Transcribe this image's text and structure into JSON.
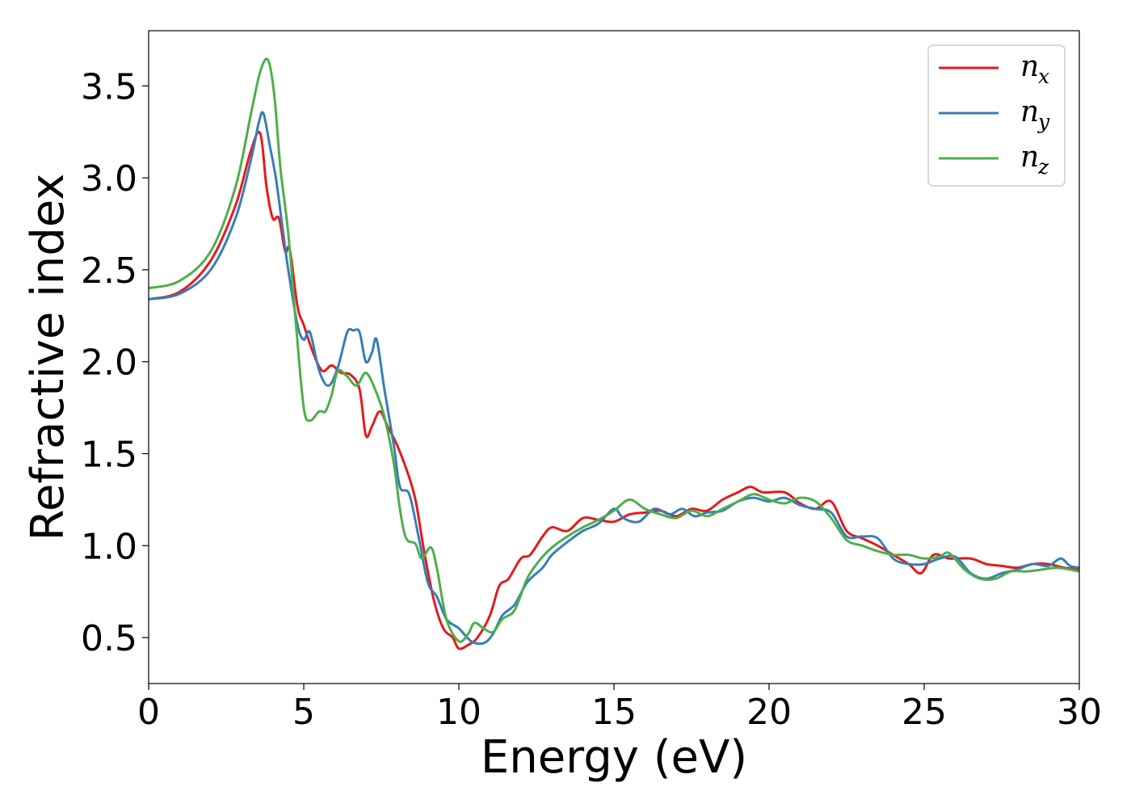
{
  "chart_data": {
    "type": "line",
    "xlabel": "Energy (eV)",
    "ylabel": "Refractive index",
    "xlim": [
      0,
      30
    ],
    "ylim": [
      0.25,
      3.8
    ],
    "xticks": [
      "0",
      "5",
      "10",
      "15",
      "20",
      "25",
      "30"
    ],
    "yticks": [
      "0.5",
      "1.0",
      "1.5",
      "2.0",
      "2.5",
      "3.0",
      "3.5"
    ],
    "grid": false,
    "legend_position": "top-right",
    "series": [
      {
        "name": "n",
        "subscript": "x",
        "color": "#e41a1c",
        "points": [
          [
            0,
            2.34
          ],
          [
            1,
            2.38
          ],
          [
            2,
            2.55
          ],
          [
            2.8,
            2.85
          ],
          [
            3.3,
            3.15
          ],
          [
            3.6,
            3.24
          ],
          [
            3.8,
            2.95
          ],
          [
            4.0,
            2.78
          ],
          [
            4.2,
            2.78
          ],
          [
            4.4,
            2.6
          ],
          [
            4.55,
            2.61
          ],
          [
            4.8,
            2.3
          ],
          [
            5.0,
            2.2
          ],
          [
            5.3,
            2.05
          ],
          [
            5.6,
            1.95
          ],
          [
            5.9,
            1.98
          ],
          [
            6.2,
            1.94
          ],
          [
            6.5,
            1.93
          ],
          [
            6.8,
            1.85
          ],
          [
            7.0,
            1.6
          ],
          [
            7.2,
            1.65
          ],
          [
            7.45,
            1.73
          ],
          [
            7.7,
            1.65
          ],
          [
            8.0,
            1.55
          ],
          [
            8.3,
            1.42
          ],
          [
            8.6,
            1.25
          ],
          [
            8.9,
            0.95
          ],
          [
            9.2,
            0.7
          ],
          [
            9.5,
            0.55
          ],
          [
            9.8,
            0.5
          ],
          [
            10.0,
            0.44
          ],
          [
            10.3,
            0.46
          ],
          [
            10.6,
            0.5
          ],
          [
            11.0,
            0.62
          ],
          [
            11.3,
            0.78
          ],
          [
            11.6,
            0.82
          ],
          [
            12.0,
            0.93
          ],
          [
            12.3,
            0.95
          ],
          [
            12.7,
            1.05
          ],
          [
            13.0,
            1.1
          ],
          [
            13.5,
            1.08
          ],
          [
            14.0,
            1.15
          ],
          [
            14.5,
            1.14
          ],
          [
            15.0,
            1.13
          ],
          [
            15.5,
            1.17
          ],
          [
            16.0,
            1.18
          ],
          [
            16.5,
            1.19
          ],
          [
            17.0,
            1.16
          ],
          [
            17.5,
            1.2
          ],
          [
            18.0,
            1.19
          ],
          [
            18.5,
            1.25
          ],
          [
            19.0,
            1.29
          ],
          [
            19.4,
            1.32
          ],
          [
            19.8,
            1.29
          ],
          [
            20.5,
            1.29
          ],
          [
            21.0,
            1.23
          ],
          [
            21.5,
            1.2
          ],
          [
            22.0,
            1.24
          ],
          [
            22.5,
            1.08
          ],
          [
            23.0,
            1.04
          ],
          [
            23.5,
            1.0
          ],
          [
            24.0,
            0.95
          ],
          [
            24.5,
            0.9
          ],
          [
            24.9,
            0.85
          ],
          [
            25.3,
            0.95
          ],
          [
            25.8,
            0.93
          ],
          [
            26.5,
            0.93
          ],
          [
            27.0,
            0.9
          ],
          [
            27.5,
            0.89
          ],
          [
            28.0,
            0.88
          ],
          [
            28.5,
            0.9
          ],
          [
            29.0,
            0.9
          ],
          [
            29.5,
            0.88
          ],
          [
            30.0,
            0.87
          ]
        ]
      },
      {
        "name": "n",
        "subscript": "y",
        "color": "#377eb8",
        "points": [
          [
            0,
            2.34
          ],
          [
            1,
            2.37
          ],
          [
            2,
            2.5
          ],
          [
            2.8,
            2.78
          ],
          [
            3.3,
            3.1
          ],
          [
            3.55,
            3.3
          ],
          [
            3.7,
            3.35
          ],
          [
            3.9,
            3.18
          ],
          [
            4.1,
            3.0
          ],
          [
            4.3,
            2.75
          ],
          [
            4.5,
            2.5
          ],
          [
            4.8,
            2.2
          ],
          [
            5.0,
            2.12
          ],
          [
            5.2,
            2.16
          ],
          [
            5.5,
            1.95
          ],
          [
            5.8,
            1.87
          ],
          [
            6.1,
            1.97
          ],
          [
            6.4,
            2.16
          ],
          [
            6.6,
            2.17
          ],
          [
            6.8,
            2.16
          ],
          [
            7.0,
            2.0
          ],
          [
            7.2,
            2.05
          ],
          [
            7.35,
            2.12
          ],
          [
            7.6,
            1.85
          ],
          [
            7.9,
            1.55
          ],
          [
            8.1,
            1.32
          ],
          [
            8.4,
            1.28
          ],
          [
            8.7,
            1.05
          ],
          [
            9.0,
            0.8
          ],
          [
            9.3,
            0.72
          ],
          [
            9.6,
            0.6
          ],
          [
            10.0,
            0.55
          ],
          [
            10.4,
            0.48
          ],
          [
            10.8,
            0.47
          ],
          [
            11.1,
            0.52
          ],
          [
            11.4,
            0.62
          ],
          [
            11.8,
            0.68
          ],
          [
            12.2,
            0.8
          ],
          [
            12.7,
            0.88
          ],
          [
            13.0,
            0.95
          ],
          [
            13.5,
            1.02
          ],
          [
            14.0,
            1.08
          ],
          [
            14.5,
            1.12
          ],
          [
            15.0,
            1.2
          ],
          [
            15.3,
            1.15
          ],
          [
            15.8,
            1.13
          ],
          [
            16.3,
            1.2
          ],
          [
            16.8,
            1.17
          ],
          [
            17.2,
            1.2
          ],
          [
            17.6,
            1.16
          ],
          [
            18.0,
            1.18
          ],
          [
            18.5,
            1.19
          ],
          [
            19.0,
            1.24
          ],
          [
            19.5,
            1.26
          ],
          [
            20.0,
            1.24
          ],
          [
            20.5,
            1.26
          ],
          [
            21.0,
            1.22
          ],
          [
            21.5,
            1.2
          ],
          [
            22.0,
            1.18
          ],
          [
            22.5,
            1.05
          ],
          [
            23.0,
            1.05
          ],
          [
            23.5,
            1.04
          ],
          [
            24.0,
            0.93
          ],
          [
            24.5,
            0.9
          ],
          [
            25.0,
            0.9
          ],
          [
            25.5,
            0.93
          ],
          [
            26.0,
            0.94
          ],
          [
            26.5,
            0.85
          ],
          [
            27.0,
            0.82
          ],
          [
            27.5,
            0.85
          ],
          [
            28.0,
            0.87
          ],
          [
            28.5,
            0.9
          ],
          [
            29.0,
            0.89
          ],
          [
            29.4,
            0.93
          ],
          [
            29.7,
            0.89
          ],
          [
            30.0,
            0.88
          ]
        ]
      },
      {
        "name": "n",
        "subscript": "z",
        "color": "#4daf4a",
        "points": [
          [
            0,
            2.4
          ],
          [
            1,
            2.44
          ],
          [
            2,
            2.6
          ],
          [
            2.8,
            2.95
          ],
          [
            3.3,
            3.35
          ],
          [
            3.6,
            3.58
          ],
          [
            3.85,
            3.64
          ],
          [
            4.05,
            3.45
          ],
          [
            4.25,
            3.05
          ],
          [
            4.5,
            2.7
          ],
          [
            4.75,
            2.2
          ],
          [
            5.0,
            1.75
          ],
          [
            5.2,
            1.68
          ],
          [
            5.5,
            1.73
          ],
          [
            5.7,
            1.73
          ],
          [
            5.9,
            1.82
          ],
          [
            6.1,
            1.95
          ],
          [
            6.4,
            1.92
          ],
          [
            6.7,
            1.87
          ],
          [
            7.0,
            1.94
          ],
          [
            7.3,
            1.85
          ],
          [
            7.6,
            1.7
          ],
          [
            7.9,
            1.45
          ],
          [
            8.1,
            1.2
          ],
          [
            8.3,
            1.04
          ],
          [
            8.6,
            1.01
          ],
          [
            8.8,
            0.93
          ],
          [
            9.1,
            0.99
          ],
          [
            9.3,
            0.87
          ],
          [
            9.6,
            0.6
          ],
          [
            10.0,
            0.48
          ],
          [
            10.3,
            0.52
          ],
          [
            10.5,
            0.58
          ],
          [
            10.8,
            0.55
          ],
          [
            11.1,
            0.53
          ],
          [
            11.4,
            0.6
          ],
          [
            11.8,
            0.65
          ],
          [
            12.2,
            0.82
          ],
          [
            12.6,
            0.92
          ],
          [
            13.0,
            0.99
          ],
          [
            13.5,
            1.05
          ],
          [
            14.0,
            1.1
          ],
          [
            14.5,
            1.14
          ],
          [
            15.0,
            1.19
          ],
          [
            15.5,
            1.25
          ],
          [
            16.0,
            1.2
          ],
          [
            16.5,
            1.17
          ],
          [
            17.0,
            1.15
          ],
          [
            17.5,
            1.19
          ],
          [
            18.0,
            1.16
          ],
          [
            18.5,
            1.2
          ],
          [
            19.0,
            1.24
          ],
          [
            19.5,
            1.28
          ],
          [
            20.0,
            1.25
          ],
          [
            20.5,
            1.23
          ],
          [
            21.0,
            1.26
          ],
          [
            21.5,
            1.24
          ],
          [
            22.0,
            1.15
          ],
          [
            22.5,
            1.03
          ],
          [
            23.0,
            1.0
          ],
          [
            23.5,
            0.97
          ],
          [
            24.0,
            0.95
          ],
          [
            24.5,
            0.95
          ],
          [
            25.0,
            0.93
          ],
          [
            25.5,
            0.94
          ],
          [
            25.8,
            0.96
          ],
          [
            26.3,
            0.87
          ],
          [
            26.8,
            0.82
          ],
          [
            27.3,
            0.82
          ],
          [
            27.8,
            0.86
          ],
          [
            28.3,
            0.86
          ],
          [
            28.8,
            0.87
          ],
          [
            29.3,
            0.88
          ],
          [
            30.0,
            0.86
          ]
        ]
      }
    ]
  }
}
